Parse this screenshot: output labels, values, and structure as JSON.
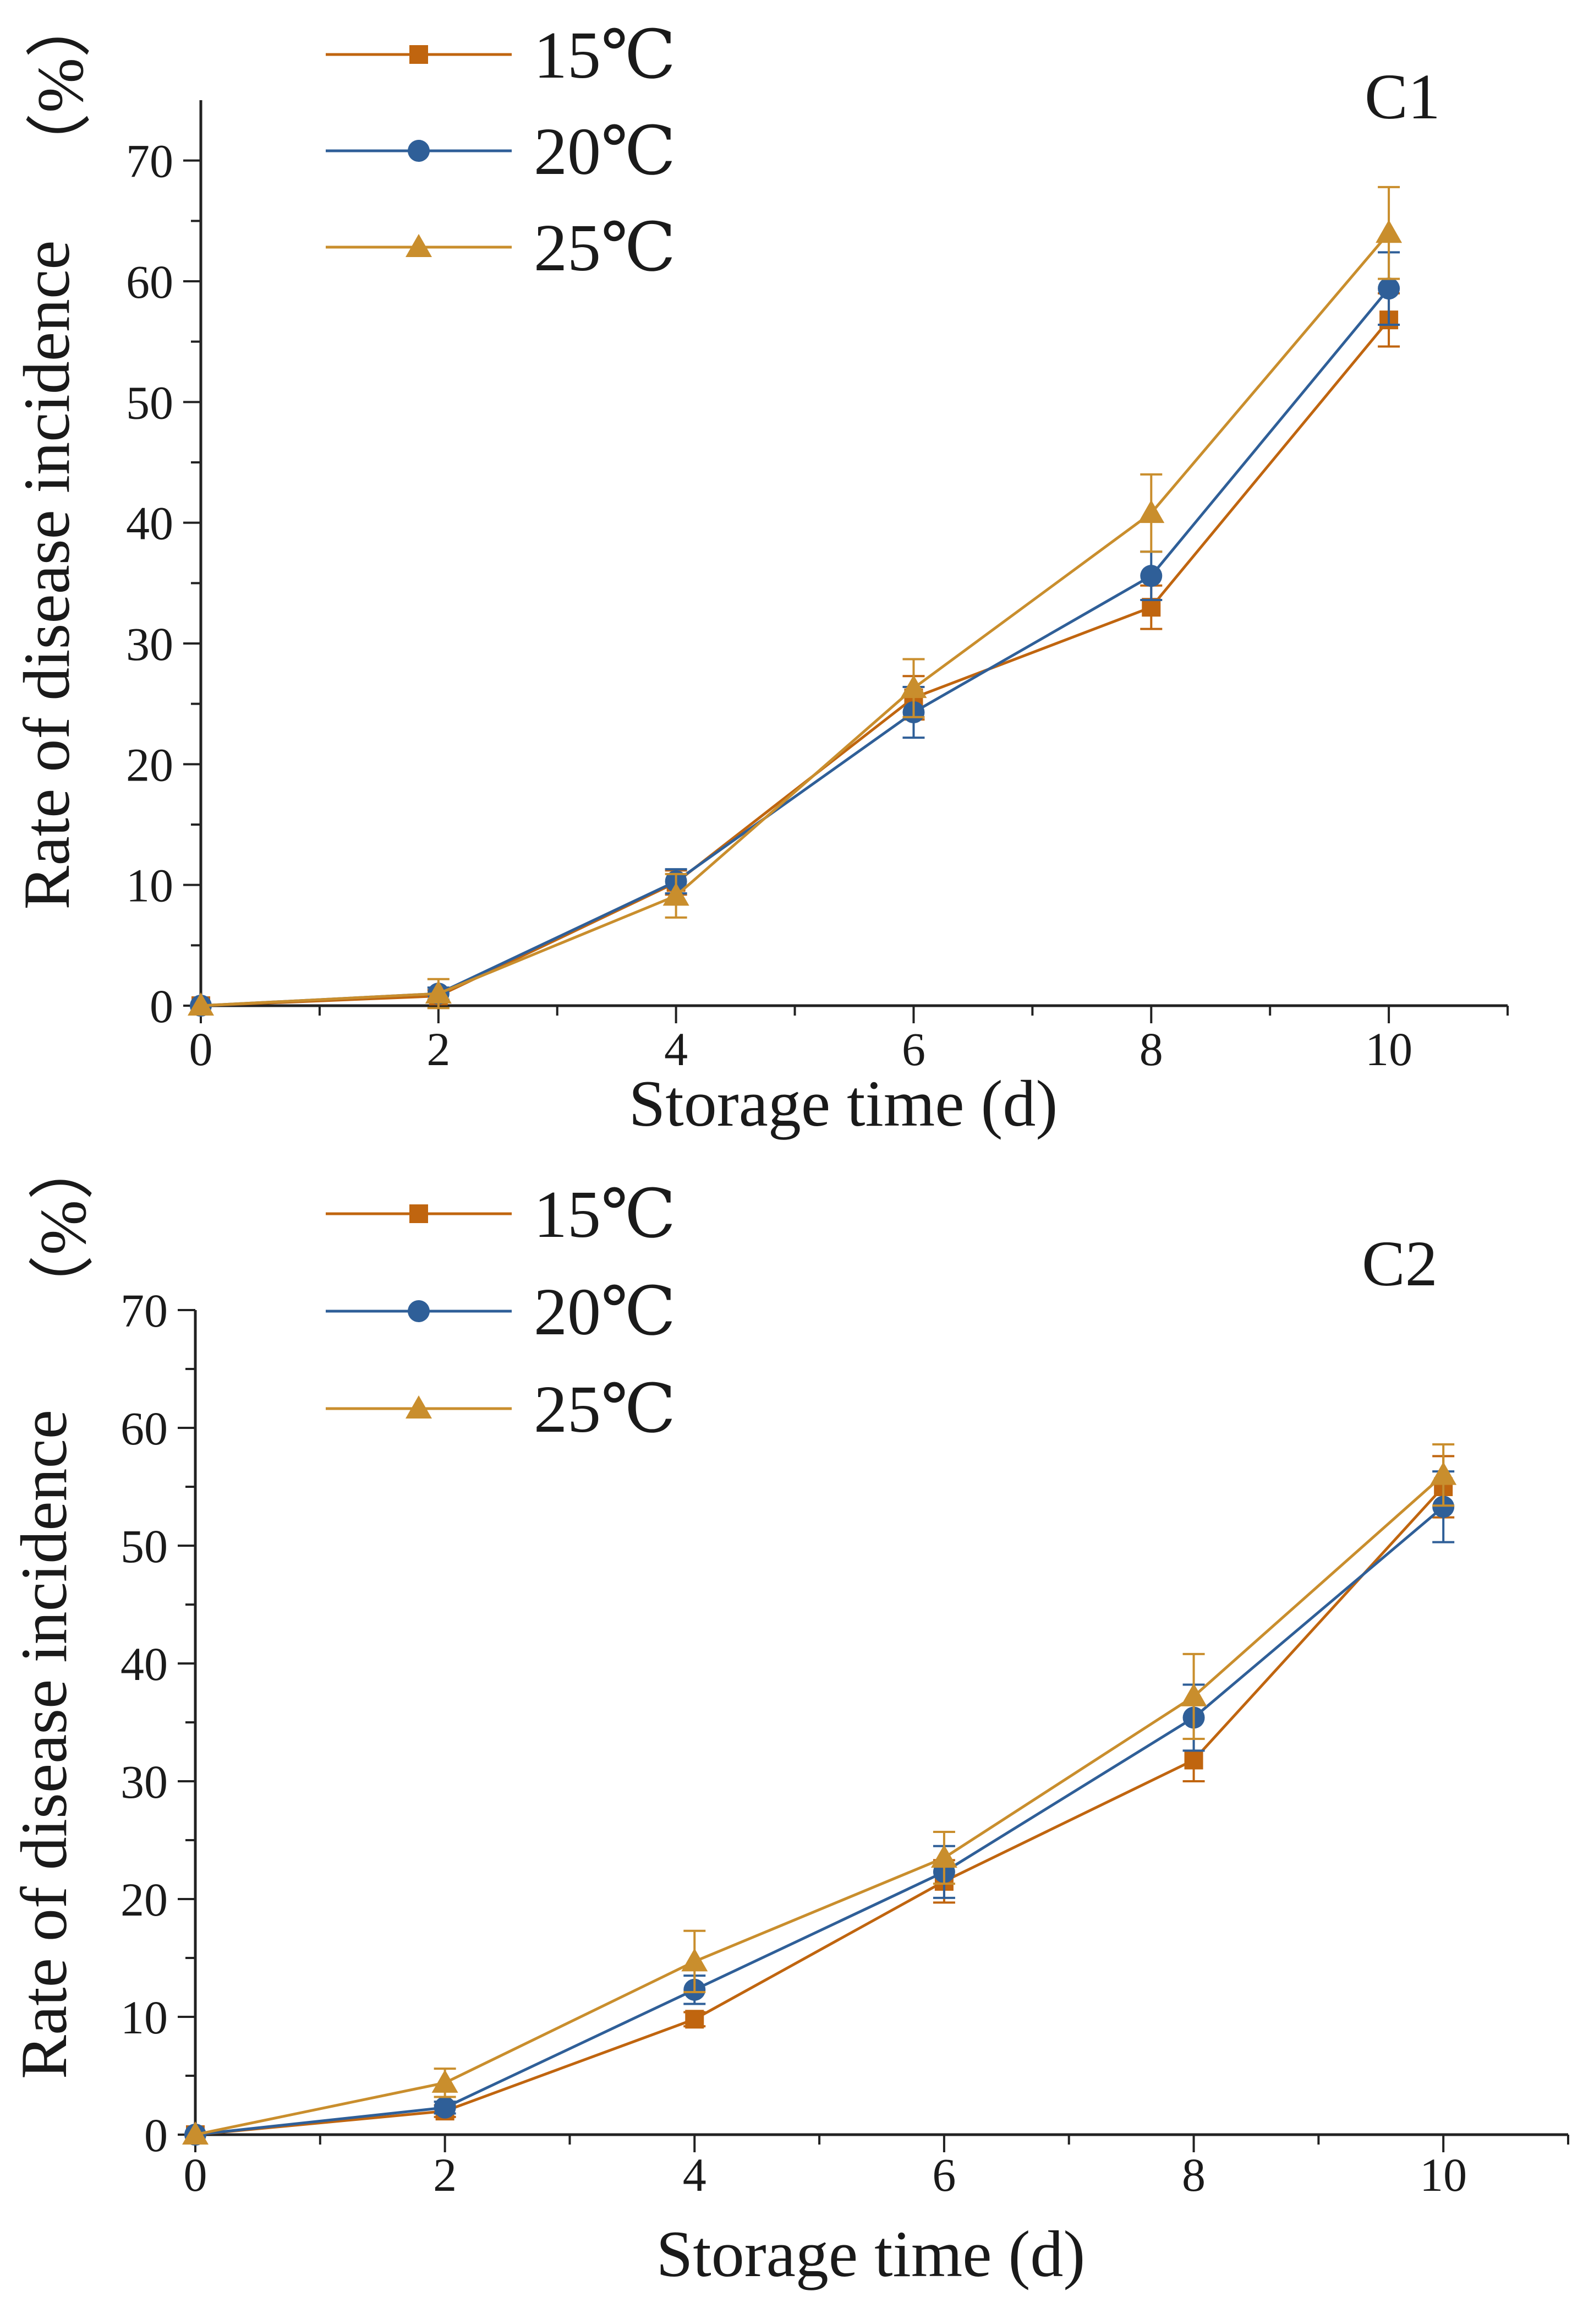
{
  "chart_data": [
    {
      "type": "line",
      "panel_label": "C1",
      "title": "",
      "xlabel": "Storage time (d)",
      "ylabel": "Rate of disease incidence",
      "ylabel_unit": "（%）",
      "x": [
        0,
        2,
        4,
        6,
        8,
        10
      ],
      "xlim": [
        0,
        11
      ],
      "ylim": [
        0,
        75
      ],
      "xticks": [
        0,
        2,
        4,
        6,
        8,
        10
      ],
      "yticks": [
        0,
        10,
        20,
        30,
        40,
        50,
        60,
        70
      ],
      "grid": false,
      "legend_position": "top-left",
      "series": [
        {
          "name": "15℃",
          "marker": "square",
          "color": "#C0650F",
          "values": [
            0,
            0.8,
            10.2,
            25.5,
            33.0,
            56.8
          ],
          "errors": [
            0,
            0.5,
            1.0,
            1.8,
            1.8,
            2.2
          ]
        },
        {
          "name": "20℃",
          "marker": "circle",
          "color": "#2F5F98",
          "values": [
            0,
            1.0,
            10.3,
            24.3,
            35.6,
            59.4
          ],
          "errors": [
            0,
            0.5,
            1.0,
            2.1,
            2.0,
            3.0
          ]
        },
        {
          "name": "25℃",
          "marker": "triangle",
          "color": "#C98E2D",
          "values": [
            0,
            1.0,
            9.1,
            26.3,
            40.8,
            64.0
          ],
          "errors": [
            0,
            1.2,
            1.8,
            2.4,
            3.2,
            3.8
          ]
        }
      ]
    },
    {
      "type": "line",
      "panel_label": "C2",
      "title": "",
      "xlabel": "Storage time (d)",
      "ylabel": "Rate of disease incidence",
      "ylabel_unit": "（%）",
      "x": [
        0,
        2,
        4,
        6,
        8,
        10
      ],
      "xlim": [
        0,
        11
      ],
      "ylim": [
        0,
        70
      ],
      "xticks": [
        0,
        2,
        4,
        6,
        8,
        10
      ],
      "yticks": [
        0,
        10,
        20,
        30,
        40,
        50,
        60,
        70
      ],
      "grid": false,
      "legend_position": "top-left",
      "series": [
        {
          "name": "15℃",
          "marker": "square",
          "color": "#C0650F",
          "values": [
            0,
            2.0,
            9.8,
            21.5,
            31.8,
            55.0
          ],
          "errors": [
            0,
            0.5,
            0.6,
            1.8,
            1.8,
            2.6
          ]
        },
        {
          "name": "20℃",
          "marker": "circle",
          "color": "#2F5F98",
          "values": [
            0,
            2.3,
            12.3,
            22.3,
            35.4,
            53.3
          ],
          "errors": [
            0,
            0.5,
            1.2,
            2.2,
            2.8,
            3.0
          ]
        },
        {
          "name": "25℃",
          "marker": "triangle",
          "color": "#C98E2D",
          "values": [
            0,
            4.4,
            14.7,
            23.5,
            37.2,
            56.0
          ],
          "errors": [
            0,
            1.2,
            2.6,
            2.2,
            3.6,
            2.6
          ]
        }
      ]
    }
  ]
}
